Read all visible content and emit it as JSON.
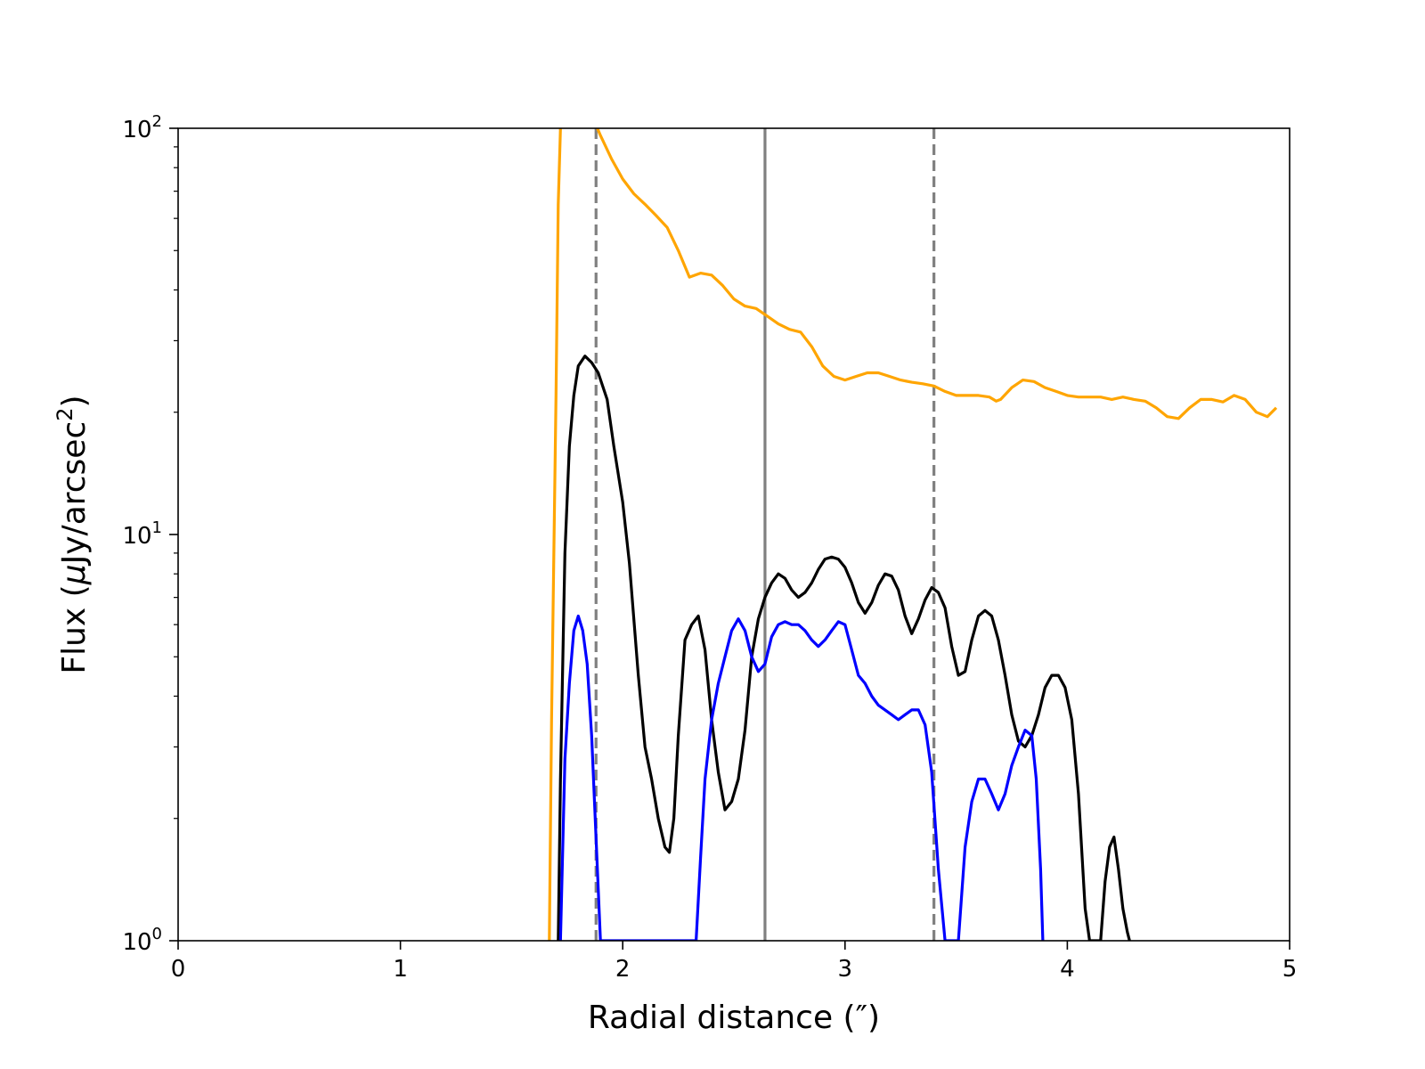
{
  "chart_data": {
    "type": "line",
    "title": "",
    "xlabel": "Radial distance (″)",
    "ylabel": "Flux (μJy/arcsec²)",
    "ylabel_parts": {
      "pre": "Flux (",
      "mu": "μ",
      "mid": "Jy/arcsec",
      "sup": "2",
      "post": ")"
    },
    "xlim": [
      0,
      5
    ],
    "ylim": [
      1,
      100
    ],
    "yscale": "log",
    "grid": false,
    "legend": "none",
    "x_ticks": [
      {
        "value": 0,
        "label": "0"
      },
      {
        "value": 1,
        "label": "1"
      },
      {
        "value": 2,
        "label": "2"
      },
      {
        "value": 3,
        "label": "3"
      },
      {
        "value": 4,
        "label": "4"
      },
      {
        "value": 5,
        "label": "5"
      }
    ],
    "y_ticks": [
      {
        "value": 1,
        "base": "10",
        "exp": "0"
      },
      {
        "value": 10,
        "base": "10",
        "exp": "1"
      },
      {
        "value": 100,
        "base": "10",
        "exp": "2"
      }
    ],
    "vlines": [
      {
        "x": 1.88,
        "style": "dashed",
        "color": "#808080"
      },
      {
        "x": 2.64,
        "style": "solid",
        "color": "#808080"
      },
      {
        "x": 3.4,
        "style": "dashed",
        "color": "#808080"
      }
    ],
    "series": [
      {
        "color": "#ffa500",
        "x": [
          1.67,
          1.68,
          1.7,
          1.71,
          1.72,
          1.74,
          1.8,
          1.86,
          1.9,
          1.95,
          2.0,
          2.05,
          2.1,
          2.15,
          2.2,
          2.25,
          2.3,
          2.35,
          2.4,
          2.45,
          2.5,
          2.55,
          2.6,
          2.65,
          2.7,
          2.75,
          2.8,
          2.85,
          2.9,
          2.95,
          3.0,
          3.05,
          3.1,
          3.15,
          3.2,
          3.25,
          3.3,
          3.35,
          3.4,
          3.45,
          3.5,
          3.55,
          3.6,
          3.65,
          3.68,
          3.7,
          3.75,
          3.8,
          3.85,
          3.9,
          3.95,
          4.0,
          4.05,
          4.1,
          4.15,
          4.2,
          4.25,
          4.3,
          4.35,
          4.4,
          4.45,
          4.5,
          4.55,
          4.6,
          4.65,
          4.7,
          4.75,
          4.8,
          4.85,
          4.9,
          4.94
        ],
        "y": [
          1.0,
          3.5,
          22.0,
          65.0,
          100.0,
          120.0,
          115.0,
          108.0,
          96.0,
          84.0,
          75.0,
          69.0,
          65.0,
          61.0,
          57.0,
          50.0,
          43.0,
          44.0,
          43.5,
          41.0,
          38.0,
          36.5,
          36.0,
          34.5,
          33.0,
          32.0,
          31.5,
          29.0,
          26.0,
          24.5,
          24.0,
          24.5,
          25.0,
          25.0,
          24.5,
          24.0,
          23.7,
          23.5,
          23.2,
          22.5,
          22.0,
          22.0,
          22.0,
          21.8,
          21.3,
          21.5,
          23.0,
          24.0,
          23.8,
          23.0,
          22.5,
          22.0,
          21.8,
          21.8,
          21.8,
          21.5,
          21.8,
          21.5,
          21.3,
          20.5,
          19.5,
          19.3,
          20.5,
          21.5,
          21.5,
          21.2,
          22.0,
          21.5,
          20.0,
          19.5,
          20.5
        ]
      },
      {
        "color": "#000000",
        "x": [
          1.71,
          1.72,
          1.74,
          1.76,
          1.78,
          1.8,
          1.83,
          1.86,
          1.89,
          1.93,
          1.96,
          2.0,
          2.03,
          2.07,
          2.1,
          2.13,
          2.16,
          2.19,
          2.21,
          2.23,
          2.25,
          2.28,
          2.31,
          2.34,
          2.37,
          2.4,
          2.43,
          2.46,
          2.49,
          2.52,
          2.55,
          2.58,
          2.61,
          2.64,
          2.67,
          2.7,
          2.73,
          2.76,
          2.79,
          2.82,
          2.85,
          2.88,
          2.91,
          2.94,
          2.97,
          3.0,
          3.03,
          3.06,
          3.09,
          3.12,
          3.15,
          3.18,
          3.21,
          3.24,
          3.27,
          3.3,
          3.33,
          3.36,
          3.39,
          3.42,
          3.45,
          3.48,
          3.51,
          3.54,
          3.57,
          3.6,
          3.63,
          3.66,
          3.69,
          3.72,
          3.75,
          3.78,
          3.81,
          3.84,
          3.87,
          3.9,
          3.93,
          3.96,
          3.99,
          4.02,
          4.05,
          4.08,
          4.1,
          4.15,
          4.17,
          4.19,
          4.21,
          4.23,
          4.25,
          4.27,
          4.28
        ],
        "y": [
          1.0,
          2.5,
          9.0,
          16.5,
          22.0,
          26.0,
          27.5,
          26.5,
          25.0,
          21.5,
          16.5,
          12.0,
          8.5,
          4.5,
          3.0,
          2.5,
          2.0,
          1.7,
          1.65,
          2.0,
          3.2,
          5.5,
          6.0,
          6.3,
          5.2,
          3.5,
          2.6,
          2.1,
          2.2,
          2.5,
          3.3,
          5.0,
          6.2,
          7.0,
          7.6,
          8.0,
          7.8,
          7.3,
          7.0,
          7.2,
          7.6,
          8.2,
          8.7,
          8.8,
          8.7,
          8.3,
          7.6,
          6.8,
          6.4,
          6.8,
          7.5,
          8.0,
          7.9,
          7.3,
          6.3,
          5.7,
          6.2,
          6.9,
          7.4,
          7.2,
          6.6,
          5.3,
          4.5,
          4.6,
          5.5,
          6.3,
          6.5,
          6.3,
          5.5,
          4.5,
          3.6,
          3.1,
          3.0,
          3.2,
          3.6,
          4.2,
          4.5,
          4.5,
          4.2,
          3.5,
          2.3,
          1.2,
          1.0,
          1.0,
          1.4,
          1.7,
          1.8,
          1.5,
          1.2,
          1.05,
          1.0
        ]
      },
      {
        "color": "#0000ff",
        "x": [
          1.72,
          1.74,
          1.76,
          1.78,
          1.8,
          1.82,
          1.84,
          1.86,
          1.88,
          1.9,
          2.33,
          2.35,
          2.37,
          2.4,
          2.43,
          2.46,
          2.49,
          2.52,
          2.55,
          2.58,
          2.61,
          2.64,
          2.67,
          2.7,
          2.73,
          2.76,
          2.79,
          2.82,
          2.85,
          2.88,
          2.91,
          2.94,
          2.97,
          3.0,
          3.03,
          3.06,
          3.09,
          3.12,
          3.15,
          3.18,
          3.21,
          3.24,
          3.27,
          3.3,
          3.33,
          3.36,
          3.39,
          3.42,
          3.45,
          3.51,
          3.54,
          3.57,
          3.6,
          3.63,
          3.66,
          3.69,
          3.72,
          3.75,
          3.78,
          3.81,
          3.84,
          3.86,
          3.88,
          3.89
        ],
        "y": [
          1.0,
          2.8,
          4.3,
          5.8,
          6.3,
          5.8,
          4.8,
          3.2,
          1.8,
          1.0,
          1.0,
          1.6,
          2.5,
          3.5,
          4.3,
          5.0,
          5.8,
          6.2,
          5.8,
          5.0,
          4.6,
          4.8,
          5.6,
          6.0,
          6.1,
          6.0,
          6.0,
          5.8,
          5.5,
          5.3,
          5.5,
          5.8,
          6.1,
          6.0,
          5.2,
          4.5,
          4.3,
          4.0,
          3.8,
          3.7,
          3.6,
          3.5,
          3.6,
          3.7,
          3.7,
          3.4,
          2.6,
          1.5,
          1.0,
          1.0,
          1.7,
          2.2,
          2.5,
          2.5,
          2.3,
          2.1,
          2.3,
          2.7,
          3.0,
          3.3,
          3.2,
          2.5,
          1.5,
          1.0
        ]
      }
    ]
  }
}
